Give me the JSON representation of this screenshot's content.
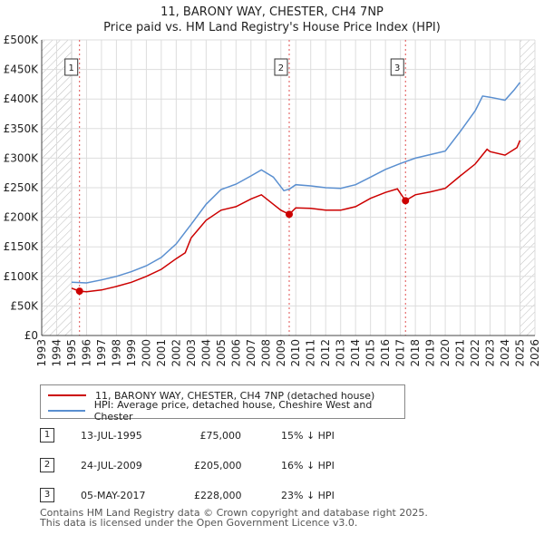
{
  "chart_data": {
    "type": "line",
    "title": "11, BARONY WAY, CHESTER, CH4 7NP",
    "subtitle": "Price paid vs. HM Land Registry's House Price Index (HPI)",
    "xlim": [
      1993,
      2026
    ],
    "ylim": [
      0,
      500000
    ],
    "x_ticks": [
      "1993",
      "1994",
      "1995",
      "1996",
      "1997",
      "1998",
      "1999",
      "2000",
      "2001",
      "2002",
      "2003",
      "2004",
      "2005",
      "2006",
      "2007",
      "2008",
      "2009",
      "2010",
      "2011",
      "2012",
      "2013",
      "2014",
      "2015",
      "2016",
      "2017",
      "2018",
      "2019",
      "2020",
      "2021",
      "2022",
      "2023",
      "2024",
      "2025",
      "2026"
    ],
    "y_ticks": [
      {
        "value": 0,
        "label": "£0"
      },
      {
        "value": 50000,
        "label": "£50K"
      },
      {
        "value": 100000,
        "label": "£100K"
      },
      {
        "value": 150000,
        "label": "£150K"
      },
      {
        "value": 200000,
        "label": "£200K"
      },
      {
        "value": 250000,
        "label": "£250K"
      },
      {
        "value": 300000,
        "label": "£300K"
      },
      {
        "value": 350000,
        "label": "£350K"
      },
      {
        "value": 400000,
        "label": "£400K"
      },
      {
        "value": 450000,
        "label": "£450K"
      },
      {
        "value": 500000,
        "label": "£500K"
      }
    ],
    "hatch_ranges": [
      [
        1993,
        1995.0
      ],
      [
        2025.0,
        2026
      ]
    ],
    "series": [
      {
        "name": "11, BARONY WAY, CHESTER, CH4 7NP (detached house)",
        "color": "#cc0000",
        "points": [
          [
            1995.0,
            80000
          ],
          [
            1995.53,
            75000
          ],
          [
            1996,
            74000
          ],
          [
            1997,
            77000
          ],
          [
            1998,
            83000
          ],
          [
            1999,
            90000
          ],
          [
            2000,
            100000
          ],
          [
            2001,
            112000
          ],
          [
            2002,
            130000
          ],
          [
            2002.6,
            140000
          ],
          [
            2003,
            165000
          ],
          [
            2004,
            195000
          ],
          [
            2005,
            212000
          ],
          [
            2006,
            218000
          ],
          [
            2007,
            231000
          ],
          [
            2007.7,
            238000
          ],
          [
            2008.5,
            222000
          ],
          [
            2009.0,
            212000
          ],
          [
            2009.56,
            205000
          ],
          [
            2010,
            216000
          ],
          [
            2011,
            215000
          ],
          [
            2012,
            212000
          ],
          [
            2013,
            212000
          ],
          [
            2014,
            218000
          ],
          [
            2015,
            232000
          ],
          [
            2016,
            242000
          ],
          [
            2016.8,
            248000
          ],
          [
            2017.34,
            228000
          ],
          [
            2018,
            238000
          ],
          [
            2019,
            243000
          ],
          [
            2020,
            249000
          ],
          [
            2021,
            270000
          ],
          [
            2022,
            290000
          ],
          [
            2022.8,
            315000
          ],
          [
            2023,
            311000
          ],
          [
            2024,
            305000
          ],
          [
            2024.8,
            318000
          ],
          [
            2025.0,
            330000
          ]
        ]
      },
      {
        "name": "HPI: Average price, detached house, Cheshire West and Chester",
        "color": "#5a8fd0",
        "points": [
          [
            1995.0,
            90000
          ],
          [
            1996,
            89000
          ],
          [
            1997,
            94000
          ],
          [
            1998,
            100000
          ],
          [
            1999,
            108000
          ],
          [
            2000,
            118000
          ],
          [
            2001,
            132000
          ],
          [
            2002,
            155000
          ],
          [
            2003,
            188000
          ],
          [
            2004,
            222000
          ],
          [
            2005,
            247000
          ],
          [
            2006,
            256000
          ],
          [
            2007,
            270000
          ],
          [
            2007.7,
            280000
          ],
          [
            2008.5,
            268000
          ],
          [
            2009.2,
            245000
          ],
          [
            2009.6,
            248000
          ],
          [
            2010,
            255000
          ],
          [
            2011,
            253000
          ],
          [
            2012,
            250000
          ],
          [
            2013,
            249000
          ],
          [
            2014,
            255000
          ],
          [
            2015,
            268000
          ],
          [
            2016,
            281000
          ],
          [
            2017,
            291000
          ],
          [
            2018,
            300000
          ],
          [
            2019,
            306000
          ],
          [
            2020,
            312000
          ],
          [
            2021,
            345000
          ],
          [
            2022,
            380000
          ],
          [
            2022.5,
            405000
          ],
          [
            2023,
            403000
          ],
          [
            2024,
            398000
          ],
          [
            2024.6,
            415000
          ],
          [
            2025.0,
            428000
          ]
        ]
      }
    ],
    "sales": [
      {
        "n": "1",
        "x": 1995.53,
        "y": 75000
      },
      {
        "n": "2",
        "x": 2009.56,
        "y": 205000
      },
      {
        "n": "3",
        "x": 2017.34,
        "y": 228000
      }
    ]
  },
  "legend": {
    "property_label": "11, BARONY WAY, CHESTER, CH4 7NP (detached house)",
    "hpi_label": "HPI: Average price, detached house, Cheshire West and Chester",
    "property_color": "#cc0000",
    "hpi_color": "#5a8fd0"
  },
  "sales_table": [
    {
      "n": "1",
      "date": "13-JUL-1995",
      "price": "£75,000",
      "hpi": "15% ↓ HPI"
    },
    {
      "n": "2",
      "date": "24-JUL-2009",
      "price": "£205,000",
      "hpi": "16% ↓ HPI"
    },
    {
      "n": "3",
      "date": "05-MAY-2017",
      "price": "£228,000",
      "hpi": "23% ↓ HPI"
    }
  ],
  "footer": {
    "line1": "Contains HM Land Registry data © Crown copyright and database right 2025.",
    "line2": "This data is licensed under the Open Government Licence v3.0."
  }
}
